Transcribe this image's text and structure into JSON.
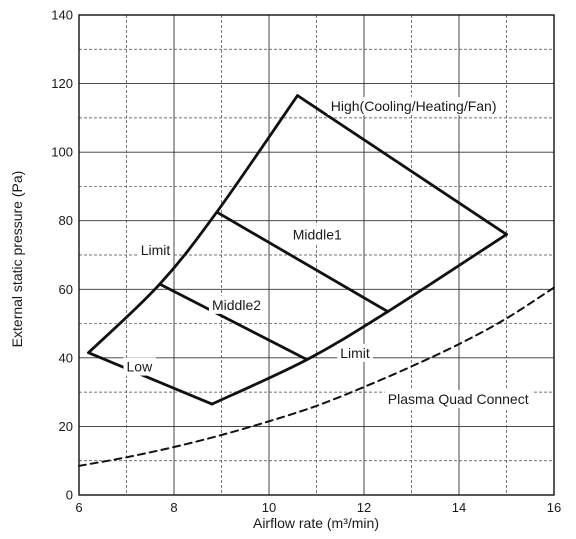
{
  "chart_data": {
    "type": "line",
    "title": "",
    "xlabel": "Airflow rate (m³/min)",
    "ylabel": "External static pressure (Pa)",
    "xlim": [
      6,
      16
    ],
    "ylim": [
      0,
      140
    ],
    "x_ticks": [
      "6",
      "8",
      "10",
      "12",
      "14",
      "16"
    ],
    "y_ticks": [
      "0",
      "20",
      "40",
      "60",
      "80",
      "100",
      "120",
      "140"
    ],
    "grid": "major solid, minor dashed",
    "series": [
      {
        "x": [
          6.2,
          7.7,
          8.9,
          10.6
        ],
        "y": [
          41.5,
          61.5,
          82.5,
          116.5
        ],
        "style": "solid",
        "smooth": true
      },
      {
        "x": [
          10.6,
          15.0
        ],
        "y": [
          116.5,
          76
        ],
        "style": "solid"
      },
      {
        "x": [
          8.8,
          10.8,
          12.5,
          15.0
        ],
        "y": [
          26.5,
          39.5,
          53.5,
          76
        ],
        "style": "solid",
        "smooth": true
      },
      {
        "x": [
          8.9,
          12.5
        ],
        "y": [
          82.5,
          53.5
        ],
        "style": "solid"
      },
      {
        "x": [
          7.7,
          10.8
        ],
        "y": [
          61.5,
          39.5
        ],
        "style": "solid"
      },
      {
        "x": [
          6.2,
          8.8
        ],
        "y": [
          41.5,
          26.5
        ],
        "style": "solid"
      },
      {
        "x": [
          6,
          7,
          8,
          9,
          10,
          11,
          12,
          13,
          14,
          15,
          16
        ],
        "y": [
          8.5,
          11,
          14,
          17.5,
          21.5,
          26,
          31.5,
          37.5,
          44,
          51.5,
          60.5
        ],
        "style": "dashed",
        "smooth": true
      }
    ],
    "annotations": [
      {
        "text": "High(Cooling/Heating/Fan)",
        "x": 11.3,
        "y": 112
      },
      {
        "text": "Middle1",
        "x": 10.5,
        "y": 74.5
      },
      {
        "text": "Middle2",
        "x": 8.8,
        "y": 54
      },
      {
        "text": "Low",
        "x": 7.0,
        "y": 36
      },
      {
        "text": "Limit",
        "x": 7.3,
        "y": 70
      },
      {
        "text": "Limit",
        "x": 11.5,
        "y": 40
      },
      {
        "text": "Plasma Quad Connect",
        "x": 12.5,
        "y": 26.5
      }
    ]
  }
}
